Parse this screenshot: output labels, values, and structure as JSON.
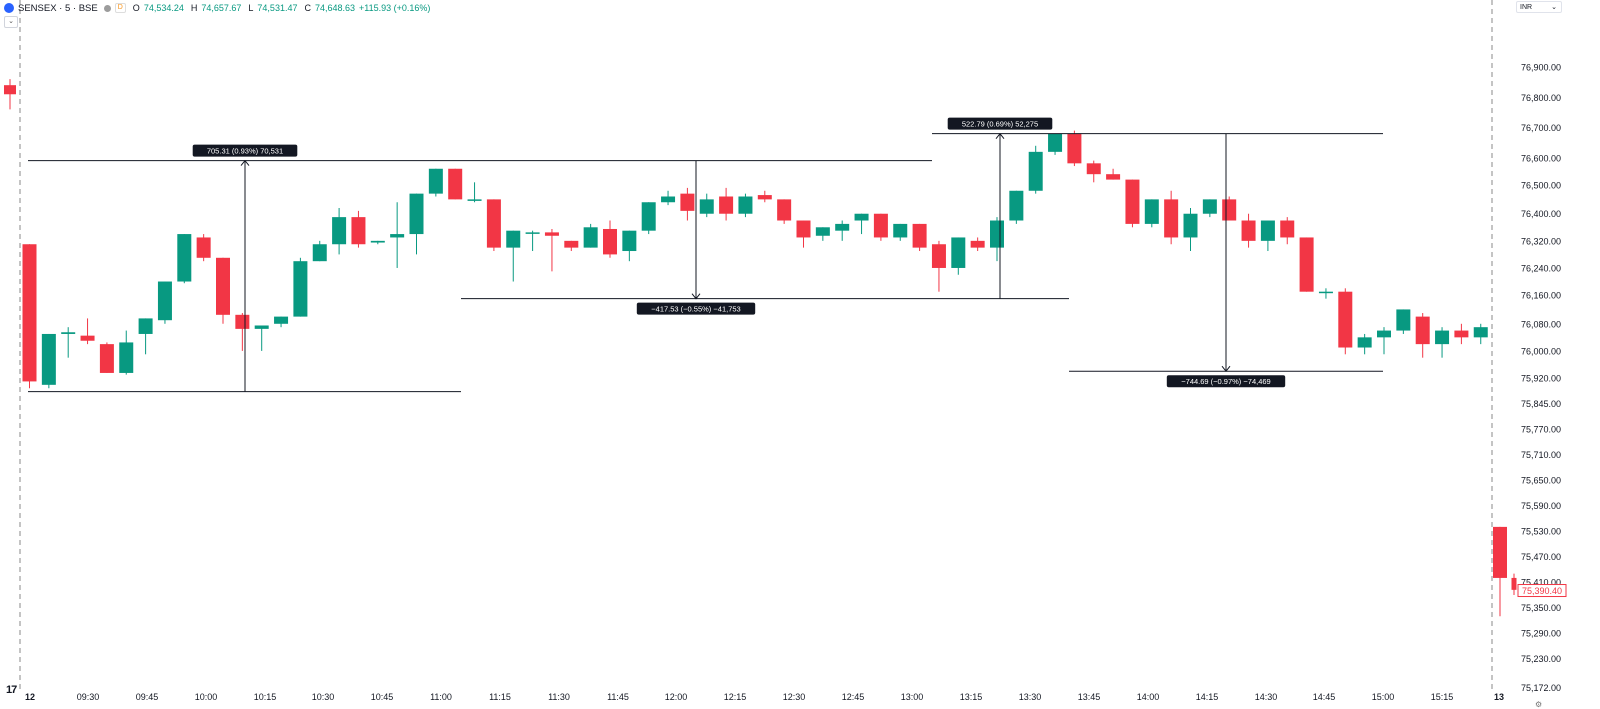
{
  "header": {
    "symbol": "SENSEX · 5 · BSE",
    "data_badge": "D",
    "open_label": "O",
    "open": "74,534.24",
    "high_label": "H",
    "high": "74,657.67",
    "low_label": "L",
    "low": "74,531.47",
    "close_label": "C",
    "close": "74,648.63",
    "change": "+115.93 (+0.16%)",
    "collapse_icon": "chevron-down-icon"
  },
  "currency": {
    "label": "INR",
    "icon": "chevron-down-icon"
  },
  "colors": {
    "up": "#089981",
    "down": "#f23645",
    "line": "#131722",
    "grid_dash": "#888888",
    "label_bg": "#131722"
  },
  "chart_data": {
    "type": "candlestick",
    "title": "SENSEX · 5 · BSE",
    "ylim": [
      75150,
      77000
    ],
    "y_ticks": [
      "76,900.00",
      "76,800.00",
      "76,700.00",
      "76,600.00",
      "76,500.00",
      "76,400.00",
      "76,320.00",
      "76,240.00",
      "76,160.00",
      "76,080.00",
      "76,000.00",
      "75,920.00",
      "75,845.00",
      "75,770.00",
      "75,710.00",
      "75,650.00",
      "75,590.00",
      "75,530.00",
      "75,470.00",
      "75,410.00",
      "75,350.00",
      "75,290.00",
      "75,230.00",
      "75,172.00"
    ],
    "x_ticks": [
      "12",
      "09:30",
      "09:45",
      "10:00",
      "10:15",
      "10:30",
      "10:45",
      "11:00",
      "11:15",
      "11:30",
      "11:45",
      "12:00",
      "12:15",
      "12:30",
      "12:45",
      "13:00",
      "13:15",
      "13:30",
      "13:45",
      "14:00",
      "14:15",
      "14:30",
      "14:45",
      "15:00",
      "15:15",
      "13"
    ],
    "prev_session_candle": {
      "o": 76840,
      "h": 76860,
      "l": 76760,
      "c": 76810
    },
    "candles": [
      {
        "o": 76310,
        "h": 76310,
        "l": 75890,
        "c": 75910
      },
      {
        "o": 75900,
        "h": 76050,
        "l": 75890,
        "c": 76050
      },
      {
        "o": 76050,
        "h": 76070,
        "l": 75980,
        "c": 76055
      },
      {
        "o": 76045,
        "h": 76095,
        "l": 76020,
        "c": 76030
      },
      {
        "o": 76020,
        "h": 76025,
        "l": 75935,
        "c": 75935
      },
      {
        "o": 75935,
        "h": 76060,
        "l": 75930,
        "c": 76025
      },
      {
        "o": 76050,
        "h": 76095,
        "l": 75990,
        "c": 76095
      },
      {
        "o": 76090,
        "h": 76200,
        "l": 76080,
        "c": 76200
      },
      {
        "o": 76200,
        "h": 76340,
        "l": 76195,
        "c": 76340
      },
      {
        "o": 76330,
        "h": 76340,
        "l": 76260,
        "c": 76270
      },
      {
        "o": 76270,
        "h": 76270,
        "l": 76080,
        "c": 76105
      },
      {
        "o": 76105,
        "h": 76110,
        "l": 76000,
        "c": 76065
      },
      {
        "o": 76065,
        "h": 76075,
        "l": 76000,
        "c": 76075
      },
      {
        "o": 76080,
        "h": 76100,
        "l": 76070,
        "c": 76100
      },
      {
        "o": 76100,
        "h": 76270,
        "l": 76100,
        "c": 76260
      },
      {
        "o": 76260,
        "h": 76320,
        "l": 76260,
        "c": 76310
      },
      {
        "o": 76310,
        "h": 76420,
        "l": 76280,
        "c": 76390
      },
      {
        "o": 76390,
        "h": 76410,
        "l": 76300,
        "c": 76310
      },
      {
        "o": 76315,
        "h": 76320,
        "l": 76310,
        "c": 76320
      },
      {
        "o": 76330,
        "h": 76440,
        "l": 76240,
        "c": 76340
      },
      {
        "o": 76340,
        "h": 76470,
        "l": 76280,
        "c": 76470
      },
      {
        "o": 76470,
        "h": 76560,
        "l": 76460,
        "c": 76560
      },
      {
        "o": 76560,
        "h": 76560,
        "l": 76450,
        "c": 76450
      },
      {
        "o": 76450,
        "h": 76510,
        "l": 76440,
        "c": 76450
      },
      {
        "o": 76450,
        "h": 76450,
        "l": 76290,
        "c": 76300
      },
      {
        "o": 76300,
        "h": 76350,
        "l": 76200,
        "c": 76350
      },
      {
        "o": 76345,
        "h": 76350,
        "l": 76290,
        "c": 76345
      },
      {
        "o": 76345,
        "h": 76355,
        "l": 76230,
        "c": 76335
      },
      {
        "o": 76320,
        "h": 76320,
        "l": 76290,
        "c": 76300
      },
      {
        "o": 76300,
        "h": 76370,
        "l": 76300,
        "c": 76360
      },
      {
        "o": 76355,
        "h": 76380,
        "l": 76270,
        "c": 76280
      },
      {
        "o": 76290,
        "h": 76350,
        "l": 76260,
        "c": 76350
      },
      {
        "o": 76350,
        "h": 76440,
        "l": 76340,
        "c": 76440
      },
      {
        "o": 76440,
        "h": 76480,
        "l": 76430,
        "c": 76460
      },
      {
        "o": 76470,
        "h": 76490,
        "l": 76380,
        "c": 76410
      },
      {
        "o": 76400,
        "h": 76470,
        "l": 76390,
        "c": 76450
      },
      {
        "o": 76460,
        "h": 76490,
        "l": 76380,
        "c": 76400
      },
      {
        "o": 76400,
        "h": 76470,
        "l": 76390,
        "c": 76460
      },
      {
        "o": 76465,
        "h": 76480,
        "l": 76440,
        "c": 76450
      },
      {
        "o": 76450,
        "h": 76450,
        "l": 76370,
        "c": 76380
      },
      {
        "o": 76380,
        "h": 76380,
        "l": 76300,
        "c": 76330
      },
      {
        "o": 76335,
        "h": 76360,
        "l": 76320,
        "c": 76360
      },
      {
        "o": 76350,
        "h": 76380,
        "l": 76320,
        "c": 76370
      },
      {
        "o": 76380,
        "h": 76400,
        "l": 76340,
        "c": 76400
      },
      {
        "o": 76400,
        "h": 76400,
        "l": 76320,
        "c": 76330
      },
      {
        "o": 76330,
        "h": 76370,
        "l": 76320,
        "c": 76370
      },
      {
        "o": 76370,
        "h": 76370,
        "l": 76290,
        "c": 76300
      },
      {
        "o": 76310,
        "h": 76320,
        "l": 76170,
        "c": 76240
      },
      {
        "o": 76240,
        "h": 76330,
        "l": 76220,
        "c": 76330
      },
      {
        "o": 76320,
        "h": 76330,
        "l": 76290,
        "c": 76300
      },
      {
        "o": 76300,
        "h": 76390,
        "l": 76260,
        "c": 76380
      },
      {
        "o": 76380,
        "h": 76480,
        "l": 76370,
        "c": 76480
      },
      {
        "o": 76480,
        "h": 76640,
        "l": 76470,
        "c": 76620
      },
      {
        "o": 76620,
        "h": 76680,
        "l": 76610,
        "c": 76680
      },
      {
        "o": 76680,
        "h": 76690,
        "l": 76570,
        "c": 76580
      },
      {
        "o": 76580,
        "h": 76590,
        "l": 76510,
        "c": 76540
      },
      {
        "o": 76540,
        "h": 76560,
        "l": 76520,
        "c": 76520
      },
      {
        "o": 76520,
        "h": 76520,
        "l": 76360,
        "c": 76370
      },
      {
        "o": 76370,
        "h": 76450,
        "l": 76360,
        "c": 76450
      },
      {
        "o": 76450,
        "h": 76480,
        "l": 76310,
        "c": 76330
      },
      {
        "o": 76330,
        "h": 76420,
        "l": 76290,
        "c": 76400
      },
      {
        "o": 76400,
        "h": 76450,
        "l": 76390,
        "c": 76450
      },
      {
        "o": 76450,
        "h": 76460,
        "l": 76380,
        "c": 76380
      },
      {
        "o": 76380,
        "h": 76400,
        "l": 76300,
        "c": 76320
      },
      {
        "o": 76320,
        "h": 76380,
        "l": 76290,
        "c": 76380
      },
      {
        "o": 76380,
        "h": 76390,
        "l": 76310,
        "c": 76330
      },
      {
        "o": 76330,
        "h": 76330,
        "l": 76170,
        "c": 76170
      },
      {
        "o": 76170,
        "h": 76180,
        "l": 76150,
        "c": 76170
      },
      {
        "o": 76170,
        "h": 76180,
        "l": 75990,
        "c": 76010
      },
      {
        "o": 76010,
        "h": 76050,
        "l": 75990,
        "c": 76040
      },
      {
        "o": 76040,
        "h": 76070,
        "l": 75990,
        "c": 76060
      },
      {
        "o": 76060,
        "h": 76120,
        "l": 76050,
        "c": 76120
      },
      {
        "o": 76100,
        "h": 76110,
        "l": 75980,
        "c": 76020
      },
      {
        "o": 76020,
        "h": 76070,
        "l": 75980,
        "c": 76060
      },
      {
        "o": 76060,
        "h": 76080,
        "l": 76020,
        "c": 76040
      },
      {
        "o": 76040,
        "h": 76080,
        "l": 76020,
        "c": 76070
      }
    ],
    "next_session_candles": [
      {
        "o": 75540,
        "h": 75540,
        "l": 75330,
        "c": 75420
      },
      {
        "o": 75420,
        "h": 75430,
        "l": 75380,
        "c": 75392
      }
    ],
    "current_price": "75,390.40",
    "measurements": [
      {
        "label": "705.31 (0.93%) 70,531",
        "from": 75880,
        "to": 76590
      },
      {
        "label": "−417.53 (−0.55%) −41,753",
        "from": 76590,
        "to": 76150
      },
      {
        "label": "522.79 (0.69%) 52,275",
        "from": 76150,
        "to": 76680
      },
      {
        "label": "−744.69 (−0.97%) −74,469",
        "from": 76680,
        "to": 75940
      }
    ]
  }
}
